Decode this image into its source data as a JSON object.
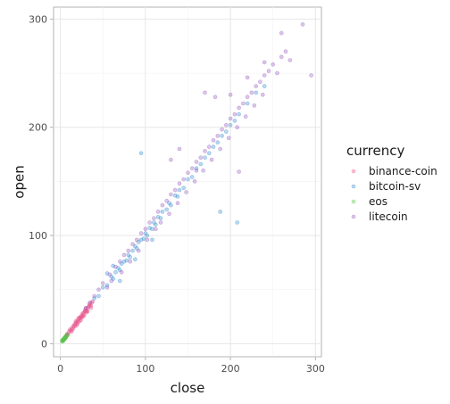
{
  "chart_data": {
    "type": "scatter",
    "xlabel": "close",
    "ylabel": "open",
    "xlim": [
      -8,
      307
    ],
    "ylim": [
      -12,
      311
    ],
    "x_ticks": [
      0,
      100,
      200,
      300
    ],
    "y_ticks": [
      0,
      100,
      200,
      300
    ],
    "grid": true,
    "legend": {
      "title": "currency",
      "placement": "right",
      "items": [
        {
          "name": "binance-coin",
          "color": "#e8578e"
        },
        {
          "name": "bitcoin-sv",
          "color": "#3a8fd0"
        },
        {
          "name": "eos",
          "color": "#5ec44f"
        },
        {
          "name": "litecoin",
          "color": "#9a5fc0"
        }
      ]
    },
    "series": [
      {
        "name": "eos",
        "color": "#5ec44f",
        "points": [
          [
            2,
            2
          ],
          [
            2.5,
            3
          ],
          [
            3,
            2.5
          ],
          [
            3.5,
            4
          ],
          [
            4,
            3.5
          ],
          [
            4.5,
            5
          ],
          [
            5,
            4.5
          ],
          [
            5.5,
            6
          ],
          [
            6,
            5.5
          ],
          [
            6.5,
            7
          ],
          [
            7,
            6.5
          ],
          [
            3,
            3.5
          ],
          [
            4,
            4.5
          ],
          [
            5,
            5.5
          ],
          [
            6,
            6.5
          ],
          [
            2.2,
            2.8
          ],
          [
            3.2,
            2.9
          ],
          [
            4.3,
            4.1
          ],
          [
            5.4,
            5.2
          ],
          [
            6.6,
            6.1
          ],
          [
            7.5,
            7.3
          ],
          [
            8,
            7.6
          ],
          [
            8.5,
            8.8
          ],
          [
            9,
            8.6
          ],
          [
            2.8,
            3.6
          ],
          [
            3.8,
            3.2
          ],
          [
            4.8,
            5.3
          ],
          [
            5.8,
            5.1
          ],
          [
            6.8,
            7.4
          ],
          [
            7.8,
            8.1
          ]
        ]
      },
      {
        "name": "binance-coin",
        "color": "#e8578e",
        "points": [
          [
            8,
            9
          ],
          [
            10,
            11
          ],
          [
            12,
            12
          ],
          [
            13,
            14
          ],
          [
            14,
            13
          ],
          [
            15,
            16
          ],
          [
            16,
            17
          ],
          [
            17,
            16
          ],
          [
            18,
            19
          ],
          [
            19,
            20
          ],
          [
            20,
            21
          ],
          [
            21,
            20
          ],
          [
            22,
            23
          ],
          [
            23,
            24
          ],
          [
            24,
            25
          ],
          [
            25,
            26
          ],
          [
            26,
            25
          ],
          [
            27,
            28
          ],
          [
            28,
            29
          ],
          [
            29,
            30
          ],
          [
            30,
            31
          ],
          [
            31,
            30
          ],
          [
            32,
            33
          ],
          [
            33,
            34
          ],
          [
            34,
            35
          ],
          [
            35,
            36
          ],
          [
            36,
            35
          ],
          [
            37,
            38
          ],
          [
            38,
            39
          ],
          [
            18,
            21
          ],
          [
            20,
            18
          ],
          [
            22,
            24
          ],
          [
            24,
            22
          ],
          [
            26,
            28
          ],
          [
            28,
            26
          ],
          [
            30,
            33
          ],
          [
            32,
            30
          ],
          [
            34,
            37
          ],
          [
            36,
            33
          ],
          [
            11,
            13
          ],
          [
            13,
            11
          ],
          [
            15,
            14
          ],
          [
            17,
            18
          ],
          [
            19,
            17
          ],
          [
            21,
            23
          ],
          [
            23,
            21
          ],
          [
            25,
            24
          ],
          [
            27,
            26
          ],
          [
            29,
            31
          ],
          [
            31,
            29
          ]
        ]
      },
      {
        "name": "bitcoin-sv",
        "color": "#3a8fd0",
        "points": [
          [
            40,
            42
          ],
          [
            45,
            44
          ],
          [
            50,
            52
          ],
          [
            55,
            54
          ],
          [
            60,
            62
          ],
          [
            62,
            60
          ],
          [
            65,
            66
          ],
          [
            68,
            70
          ],
          [
            70,
            68
          ],
          [
            72,
            74
          ],
          [
            75,
            76
          ],
          [
            78,
            77
          ],
          [
            80,
            82
          ],
          [
            82,
            80
          ],
          [
            85,
            86
          ],
          [
            88,
            90
          ],
          [
            90,
            88
          ],
          [
            92,
            94
          ],
          [
            95,
            96
          ],
          [
            98,
            97
          ],
          [
            100,
            102
          ],
          [
            102,
            100
          ],
          [
            105,
            107
          ],
          [
            108,
            106
          ],
          [
            110,
            112
          ],
          [
            112,
            110
          ],
          [
            115,
            117
          ],
          [
            118,
            116
          ],
          [
            120,
            122
          ],
          [
            125,
            124
          ],
          [
            128,
            130
          ],
          [
            130,
            128
          ],
          [
            135,
            137
          ],
          [
            138,
            136
          ],
          [
            140,
            142
          ],
          [
            145,
            144
          ],
          [
            150,
            152
          ],
          [
            155,
            154
          ],
          [
            160,
            162
          ],
          [
            165,
            166
          ],
          [
            170,
            172
          ],
          [
            175,
            176
          ],
          [
            180,
            182
          ],
          [
            185,
            186
          ],
          [
            190,
            192
          ],
          [
            195,
            196
          ],
          [
            200,
            202
          ],
          [
            205,
            206
          ],
          [
            210,
            212
          ],
          [
            220,
            222
          ],
          [
            230,
            232
          ],
          [
            240,
            238
          ],
          [
            95,
            176
          ],
          [
            188,
            122
          ],
          [
            208,
            112
          ],
          [
            55,
            65
          ],
          [
            62,
            72
          ],
          [
            70,
            58
          ],
          [
            88,
            78
          ],
          [
            108,
            96
          ]
        ]
      },
      {
        "name": "litecoin",
        "color": "#9a5fc0",
        "points": [
          [
            30,
            33
          ],
          [
            35,
            38
          ],
          [
            40,
            44
          ],
          [
            45,
            50
          ],
          [
            50,
            56
          ],
          [
            55,
            52
          ],
          [
            58,
            64
          ],
          [
            60,
            58
          ],
          [
            65,
            71
          ],
          [
            70,
            76
          ],
          [
            72,
            66
          ],
          [
            75,
            82
          ],
          [
            80,
            86
          ],
          [
            82,
            76
          ],
          [
            85,
            92
          ],
          [
            90,
            96
          ],
          [
            92,
            86
          ],
          [
            95,
            102
          ],
          [
            100,
            106
          ],
          [
            102,
            96
          ],
          [
            105,
            112
          ],
          [
            110,
            116
          ],
          [
            112,
            106
          ],
          [
            115,
            122
          ],
          [
            118,
            112
          ],
          [
            120,
            128
          ],
          [
            125,
            132
          ],
          [
            128,
            120
          ],
          [
            130,
            138
          ],
          [
            135,
            142
          ],
          [
            138,
            130
          ],
          [
            140,
            148
          ],
          [
            145,
            152
          ],
          [
            148,
            140
          ],
          [
            150,
            158
          ],
          [
            155,
            162
          ],
          [
            158,
            150
          ],
          [
            160,
            168
          ],
          [
            165,
            172
          ],
          [
            168,
            160
          ],
          [
            170,
            178
          ],
          [
            175,
            182
          ],
          [
            178,
            170
          ],
          [
            180,
            188
          ],
          [
            185,
            192
          ],
          [
            188,
            180
          ],
          [
            190,
            198
          ],
          [
            195,
            202
          ],
          [
            198,
            190
          ],
          [
            200,
            208
          ],
          [
            205,
            212
          ],
          [
            208,
            200
          ],
          [
            210,
            218
          ],
          [
            215,
            222
          ],
          [
            218,
            210
          ],
          [
            220,
            228
          ],
          [
            225,
            232
          ],
          [
            228,
            220
          ],
          [
            230,
            238
          ],
          [
            235,
            242
          ],
          [
            238,
            230
          ],
          [
            240,
            248
          ],
          [
            245,
            252
          ],
          [
            250,
            258
          ],
          [
            255,
            250
          ],
          [
            260,
            265
          ],
          [
            265,
            270
          ],
          [
            270,
            262
          ],
          [
            285,
            295
          ],
          [
            295,
            248
          ],
          [
            240,
            260
          ],
          [
            220,
            246
          ],
          [
            200,
            230
          ],
          [
            182,
            228
          ],
          [
            170,
            232
          ],
          [
            210,
            159
          ],
          [
            160,
            160
          ],
          [
            260,
            287
          ],
          [
            140,
            180
          ],
          [
            130,
            170
          ]
        ]
      }
    ]
  }
}
